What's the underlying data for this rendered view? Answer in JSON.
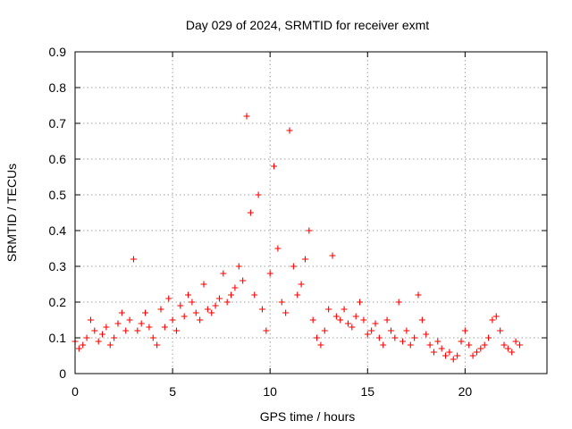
{
  "chart_data": {
    "type": "scatter",
    "title": "Day 029 of 2024, SRMTID for receiver exmt",
    "xlabel": "GPS time / hours",
    "ylabel": "SRMTID / TECUs",
    "xlim": [
      0,
      24.2
    ],
    "ylim": [
      0,
      0.9
    ],
    "x_ticks": [
      0,
      5,
      10,
      15,
      20
    ],
    "y_ticks": [
      0,
      0.1,
      0.2,
      0.3,
      0.4,
      0.5,
      0.6,
      0.7,
      0.8,
      0.9
    ],
    "x_tick_labels": [
      "0",
      "5",
      "10",
      "15",
      "20"
    ],
    "y_tick_labels": [
      "0",
      "0.1",
      "0.2",
      "0.3",
      "0.4",
      "0.5",
      "0.6",
      "0.7",
      "0.8",
      "0.9"
    ],
    "grid": true,
    "marker": "plus",
    "color": "#ff0000",
    "series": [
      {
        "name": "SRMTID",
        "x": [
          0.0,
          0.2,
          0.4,
          0.6,
          0.8,
          1.0,
          1.2,
          1.4,
          1.6,
          1.8,
          2.0,
          2.2,
          2.4,
          2.6,
          2.8,
          3.0,
          3.2,
          3.4,
          3.6,
          3.8,
          4.0,
          4.2,
          4.4,
          4.6,
          4.8,
          5.0,
          5.2,
          5.4,
          5.6,
          5.8,
          6.0,
          6.2,
          6.4,
          6.6,
          6.8,
          7.0,
          7.2,
          7.4,
          7.6,
          7.8,
          8.0,
          8.2,
          8.4,
          8.6,
          8.8,
          9.0,
          9.2,
          9.4,
          9.6,
          9.8,
          10.0,
          10.2,
          10.4,
          10.6,
          10.8,
          11.0,
          11.2,
          11.4,
          11.6,
          11.8,
          12.0,
          12.2,
          12.4,
          12.6,
          12.8,
          13.0,
          13.2,
          13.4,
          13.6,
          13.8,
          14.0,
          14.2,
          14.4,
          14.6,
          14.8,
          15.0,
          15.2,
          15.4,
          15.6,
          15.8,
          16.0,
          16.2,
          16.4,
          16.6,
          16.8,
          17.0,
          17.2,
          17.4,
          17.6,
          17.8,
          18.0,
          18.2,
          18.4,
          18.6,
          18.8,
          19.0,
          19.2,
          19.4,
          19.6,
          19.8,
          20.0,
          20.2,
          20.4,
          20.6,
          20.8,
          21.0,
          21.2,
          21.4,
          21.6,
          21.8,
          22.0,
          22.2,
          22.4,
          22.6,
          22.8
        ],
        "y": [
          0.09,
          0.07,
          0.08,
          0.1,
          0.15,
          0.12,
          0.09,
          0.11,
          0.13,
          0.08,
          0.1,
          0.14,
          0.17,
          0.12,
          0.15,
          0.32,
          0.12,
          0.14,
          0.17,
          0.13,
          0.1,
          0.08,
          0.18,
          0.13,
          0.21,
          0.15,
          0.12,
          0.19,
          0.16,
          0.22,
          0.2,
          0.17,
          0.15,
          0.25,
          0.18,
          0.17,
          0.19,
          0.21,
          0.28,
          0.2,
          0.22,
          0.24,
          0.3,
          0.26,
          0.72,
          0.45,
          0.22,
          0.5,
          0.18,
          0.12,
          0.28,
          0.58,
          0.35,
          0.2,
          0.17,
          0.68,
          0.3,
          0.22,
          0.25,
          0.32,
          0.4,
          0.15,
          0.1,
          0.08,
          0.12,
          0.18,
          0.33,
          0.16,
          0.15,
          0.18,
          0.14,
          0.13,
          0.16,
          0.2,
          0.15,
          0.11,
          0.12,
          0.14,
          0.1,
          0.08,
          0.15,
          0.12,
          0.1,
          0.2,
          0.09,
          0.12,
          0.08,
          0.1,
          0.22,
          0.15,
          0.11,
          0.08,
          0.06,
          0.09,
          0.07,
          0.05,
          0.06,
          0.04,
          0.05,
          0.09,
          0.12,
          0.08,
          0.05,
          0.06,
          0.07,
          0.08,
          0.1,
          0.15,
          0.16,
          0.12,
          0.08,
          0.07,
          0.06,
          0.09,
          0.08
        ]
      }
    ]
  }
}
